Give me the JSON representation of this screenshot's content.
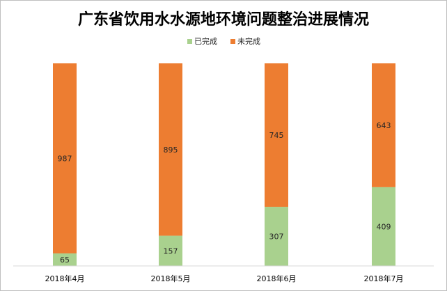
{
  "chart_data": {
    "type": "bar",
    "stacked": true,
    "title": "广东省饮用水水源地环境问题整治进展情况",
    "categories": [
      "2018年4月",
      "2018年5月",
      "2018年6月",
      "2018年7月"
    ],
    "series": [
      {
        "name": "已完成",
        "color": "#a9d18e",
        "values": [
          65,
          157,
          307,
          409
        ]
      },
      {
        "name": "未完成",
        "color": "#ed7d31",
        "values": [
          987,
          895,
          745,
          643
        ]
      }
    ],
    "xlabel": "",
    "ylabel": "",
    "ylim": [
      0,
      1052
    ],
    "grid": false,
    "legend_position": "top",
    "data_labels": true
  }
}
